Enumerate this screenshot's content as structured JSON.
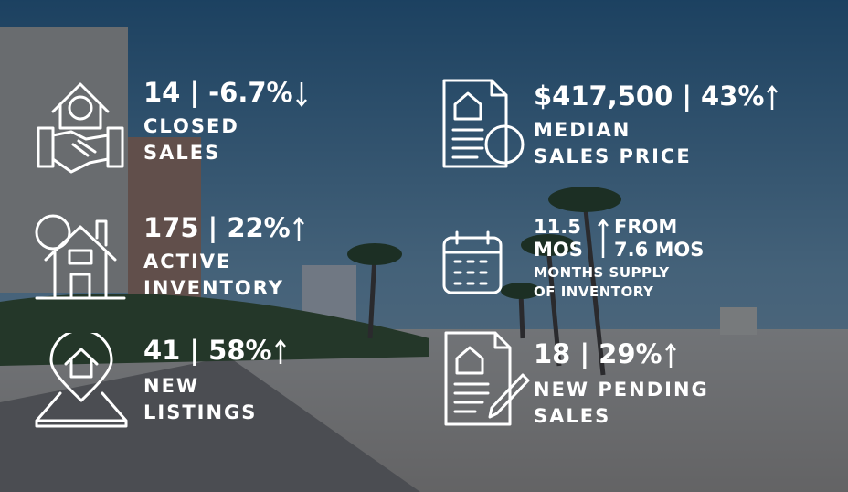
{
  "stats": [
    {
      "headline": "14 | -6.7%",
      "label_lines": [
        "CLOSED",
        "SALES"
      ]
    },
    {
      "headline": "$417,500 | 43%",
      "label_lines": [
        "MEDIAN",
        "SALES PRICE"
      ]
    },
    {
      "headline": "175 | 22%",
      "label_lines": [
        "ACTIVE",
        "INVENTORY"
      ]
    },
    {
      "value_lines": [
        "11.5",
        "MOS"
      ],
      "change_lines": [
        "FROM",
        "7.6 MOS"
      ],
      "label_lines": [
        "MONTHS SUPPLY",
        "OF INVENTORY"
      ]
    },
    {
      "headline": "41 | 58%",
      "label_lines": [
        "NEW",
        "LISTINGS"
      ]
    },
    {
      "headline": "18 | 29%",
      "label_lines": [
        "NEW PENDING",
        "SALES"
      ]
    }
  ]
}
